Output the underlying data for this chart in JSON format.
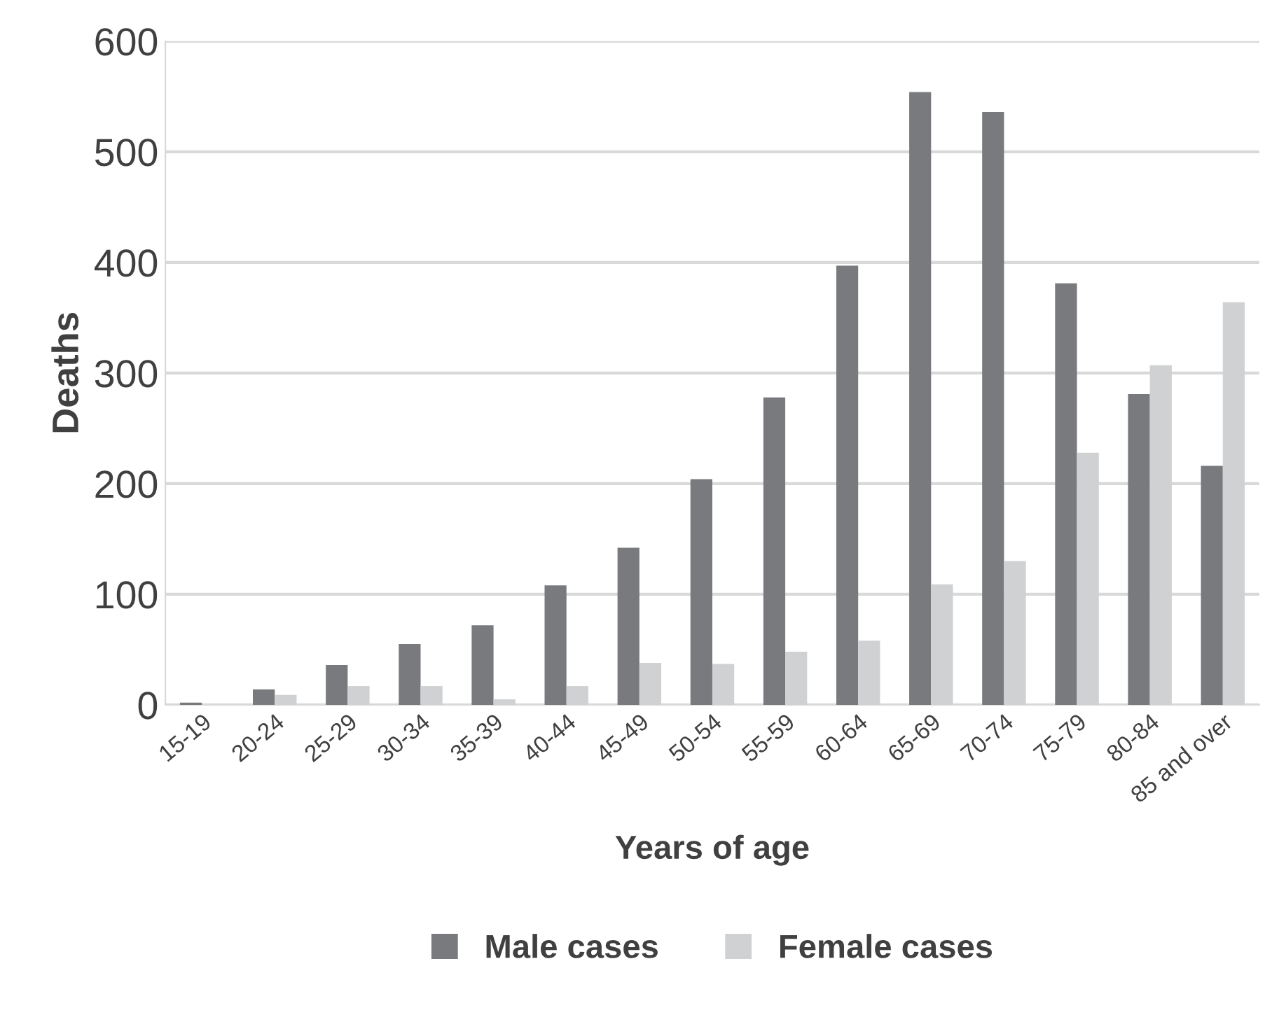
{
  "chart_data": {
    "type": "bar",
    "xlabel": "Years of age",
    "ylabel": "Deaths",
    "categories": [
      "15-19",
      "20-24",
      "25-29",
      "30-34",
      "35-39",
      "40-44",
      "45-49",
      "50-54",
      "55-59",
      "60-64",
      "65-69",
      "70-74",
      "75-79",
      "80-84",
      "85 and over"
    ],
    "series": [
      {
        "name": "Male cases",
        "color": "#797a7e",
        "values": [
          2,
          14,
          36,
          55,
          72,
          108,
          142,
          204,
          278,
          397,
          554,
          536,
          381,
          281,
          216
        ]
      },
      {
        "name": "Female cases",
        "color": "#d0d1d3",
        "values": [
          0,
          9,
          17,
          17,
          5,
          17,
          38,
          37,
          48,
          58,
          109,
          130,
          228,
          307,
          364
        ]
      }
    ],
    "ylim": [
      0,
      600
    ],
    "yticks": [
      0,
      100,
      200,
      300,
      400,
      500,
      600
    ],
    "grid": "y",
    "legend": "bottom"
  }
}
